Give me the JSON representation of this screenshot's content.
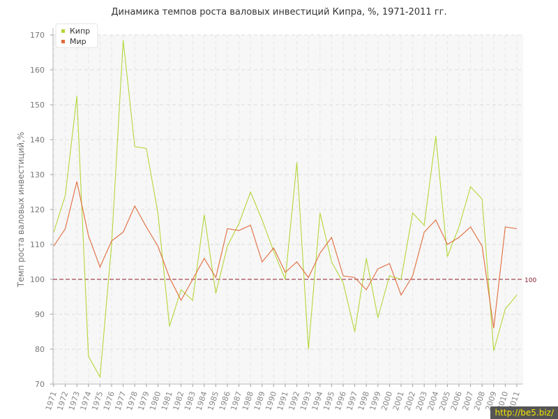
{
  "chart_data": {
    "type": "line",
    "title": "Динамика темпов роста валовых инвестиций Кипра, %, 1971-2011 гг.",
    "ylabel": "Темп роста валовых инвестиций,%",
    "xlabel": "",
    "ylim": [
      70,
      170
    ],
    "yticks": [
      70,
      80,
      90,
      100,
      110,
      120,
      130,
      140,
      150,
      160,
      170
    ],
    "grid": true,
    "legend_position": "top-left",
    "reference_line": {
      "value": 100,
      "label": "100",
      "color": "#8b1a2b"
    },
    "x": [
      "1971",
      "1972",
      "1973",
      "1974",
      "1975",
      "1976",
      "1977",
      "1978",
      "1979",
      "1980",
      "1981",
      "1982",
      "1983",
      "1984",
      "1985",
      "1986",
      "1987",
      "1988",
      "1989",
      "1990",
      "1991",
      "1992",
      "1993",
      "1994",
      "1995",
      "1996",
      "1997",
      "1998",
      "1999",
      "2000",
      "2001",
      "2002",
      "2003",
      "2004",
      "2005",
      "2006",
      "2007",
      "2008",
      "2009",
      "2010",
      "2011"
    ],
    "series": [
      {
        "name": "Кипр",
        "color": "#b5d63a",
        "values": [
          113.5,
          124,
          152.5,
          78,
          72,
          110,
          168.5,
          138,
          137.5,
          119,
          86.5,
          97,
          94,
          118.5,
          96,
          109.5,
          116,
          125,
          117,
          108,
          100,
          133.5,
          80,
          119,
          105,
          99,
          85,
          106,
          89,
          101,
          100,
          119,
          115.5,
          141,
          106.5,
          115,
          126.5,
          123,
          79.5,
          91.5,
          95.5
        ]
      },
      {
        "name": "Мир",
        "color": "#e06b3c",
        "values": [
          109.5,
          114.5,
          128,
          112.5,
          103.5,
          111,
          113.5,
          121,
          115,
          109.5,
          100.5,
          94,
          100,
          106,
          100.5,
          114.5,
          114,
          115.5,
          105,
          109,
          102,
          105,
          100.5,
          107.5,
          112,
          101,
          100.5,
          97,
          103,
          104.5,
          95.5,
          101,
          113.5,
          117,
          110,
          112,
          115,
          109.5,
          86,
          115,
          114.5
        ]
      }
    ]
  },
  "watermark": "http://be5.biz/"
}
